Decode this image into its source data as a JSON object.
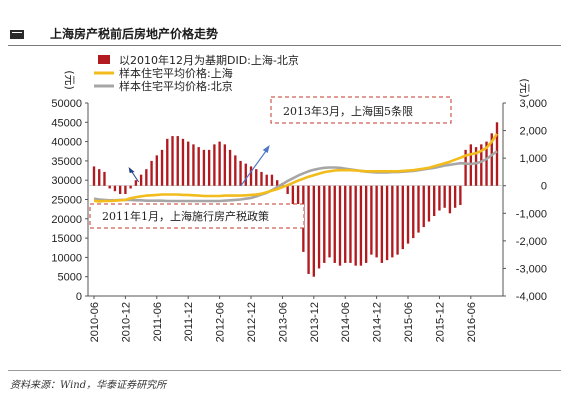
{
  "header": {
    "title": "上海房产税前后房地产价格走势"
  },
  "footer": {
    "source": "资料来源：Wind，华泰证券研究所"
  },
  "chart_data": {
    "type": "bar+line",
    "title": "上海房产税前后房地产价格走势",
    "left_axis": {
      "label": "(元)",
      "min": 0,
      "max": 50000,
      "ticks": [
        0,
        5000,
        10000,
        15000,
        20000,
        25000,
        30000,
        35000,
        40000,
        45000,
        50000
      ]
    },
    "right_axis": {
      "label": "(元)",
      "min": -4000,
      "max": 3000,
      "ticks": [
        -4000,
        -3000,
        -2000,
        -1000,
        0,
        1000,
        2000,
        3000
      ],
      "tick_labels": [
        "-4,000",
        "-3,000",
        "-2,000",
        "-1,000",
        "0",
        "1,000",
        "2,000",
        "3,000"
      ]
    },
    "x_ticks": [
      "2010-06",
      "2010-12",
      "2011-06",
      "2011-12",
      "2012-06",
      "2012-12",
      "2013-06",
      "2013-12",
      "2014-06",
      "2014-12",
      "2015-06",
      "2015-12",
      "2016-06"
    ],
    "x_start": "2010-06",
    "colors": {
      "bars": "#b11a1f",
      "shanghai": "#f2bc1c",
      "beijing": "#a6a6a6"
    },
    "series": [
      {
        "name": "以2010年12月为基期DID:上海-北京",
        "axis": "right",
        "kind": "bar",
        "values": [
          700,
          600,
          500,
          -100,
          -200,
          -300,
          -300,
          -100,
          200,
          400,
          600,
          900,
          1100,
          1300,
          1700,
          1800,
          1800,
          1700,
          1600,
          1500,
          1400,
          1300,
          1300,
          1500,
          1600,
          1500,
          1300,
          1100,
          900,
          800,
          700,
          600,
          500,
          400,
          400,
          200,
          100,
          -300,
          -700,
          -1400,
          -2400,
          -3200,
          -3300,
          -3000,
          -2800,
          -2600,
          -2800,
          -2900,
          -2800,
          -2800,
          -2900,
          -2900,
          -2800,
          -2500,
          -2600,
          -2800,
          -2700,
          -2600,
          -2500,
          -2300,
          -2100,
          -1900,
          -1700,
          -1500,
          -1300,
          -1100,
          -900,
          -800,
          -1000,
          -800,
          -700,
          1300,
          1500,
          1400,
          1500,
          1600,
          1900,
          2300
        ]
      },
      {
        "name": "样本住宅平均价格:上海",
        "axis": "left",
        "kind": "line",
        "values": [
          24700,
          24500,
          24600,
          24600,
          24700,
          24800,
          24900,
          25300,
          25600,
          25800,
          26000,
          26100,
          26200,
          26300,
          26300,
          26300,
          26300,
          26200,
          26200,
          26100,
          26000,
          25900,
          25900,
          25900,
          25900,
          26000,
          26000,
          26000,
          26000,
          26100,
          26200,
          26300,
          26500,
          26900,
          27300,
          27700,
          28200,
          28700,
          29300,
          29900,
          30400,
          30900,
          31300,
          31700,
          32100,
          32300,
          32500,
          32600,
          32600,
          32600,
          32500,
          32400,
          32300,
          32300,
          32300,
          32300,
          32300,
          32300,
          32300,
          32400,
          32500,
          32600,
          32800,
          33000,
          33200,
          33600,
          34000,
          34400,
          34800,
          35300,
          35800,
          36400,
          36700,
          37000,
          37600,
          38400,
          40000,
          42000
        ]
      },
      {
        "name": "样本住宅平均价格:北京",
        "axis": "left",
        "kind": "line",
        "values": [
          25200,
          25000,
          24900,
          24800,
          24800,
          24900,
          24900,
          24900,
          24800,
          24800,
          24700,
          24700,
          24700,
          24700,
          24600,
          24600,
          24600,
          24600,
          24600,
          24600,
          24600,
          24600,
          24600,
          24600,
          24600,
          24700,
          24800,
          24900,
          25000,
          25200,
          25400,
          25800,
          26300,
          26700,
          27400,
          28200,
          29000,
          29800,
          30500,
          31200,
          31800,
          32300,
          32700,
          33000,
          33200,
          33300,
          33300,
          33200,
          33000,
          32800,
          32600,
          32400,
          32200,
          32100,
          32000,
          32000,
          32000,
          32100,
          32100,
          32200,
          32300,
          32400,
          32600,
          32800,
          33000,
          33200,
          33500,
          33800,
          34000,
          34200,
          34400,
          34300,
          34200,
          34400,
          34800,
          35500,
          36500,
          37500
        ]
      }
    ],
    "annotations": [
      {
        "text": "2011年1月，上海施行房产税政策",
        "x": "2011-01"
      },
      {
        "text": "2013年3月，上海国5条限",
        "x": "2013-03"
      }
    ]
  }
}
